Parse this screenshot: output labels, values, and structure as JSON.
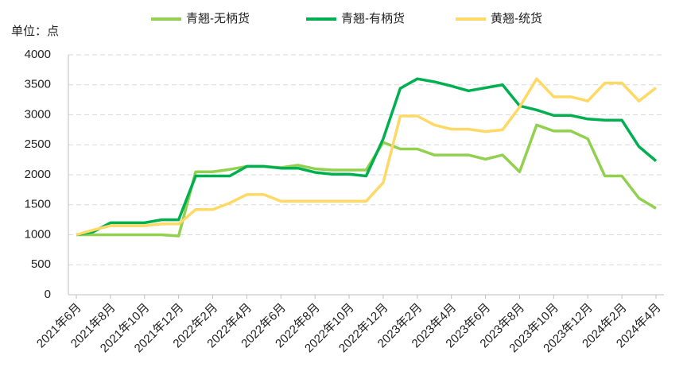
{
  "chart_data": {
    "type": "line",
    "y_label": "单位：点",
    "categories": [
      "2021年6月",
      null,
      "2021年8月",
      null,
      "2021年10月",
      null,
      "2021年12月",
      null,
      "2022年2月",
      null,
      "2022年4月",
      null,
      "2022年6月",
      null,
      "2022年8月",
      null,
      "2022年10月",
      null,
      "2022年12月",
      null,
      "2023年2月",
      null,
      "2023年4月",
      null,
      "2023年6月",
      null,
      "2023年8月",
      null,
      "2023年10月",
      null,
      "2023年12月",
      null,
      "2024年2月",
      null,
      "2024年4月"
    ],
    "series": [
      {
        "name": "青翘-无柄货",
        "color": "#92d050",
        "values": [
          1000,
          1000,
          1000,
          1000,
          1000,
          1000,
          980,
          2050,
          2050,
          2090,
          2140,
          2140,
          2120,
          2160,
          2100,
          2080,
          2080,
          2080,
          2540,
          2430,
          2430,
          2330,
          2330,
          2330,
          2260,
          2330,
          2050,
          2830,
          2730,
          2730,
          2600,
          1980,
          1980,
          1610,
          1440
        ]
      },
      {
        "name": "青翘-有柄货",
        "color": "#00b050",
        "values": [
          1000,
          1050,
          1200,
          1200,
          1200,
          1250,
          1250,
          1980,
          1980,
          1980,
          2140,
          2140,
          2110,
          2110,
          2040,
          2010,
          2010,
          1980,
          2600,
          3440,
          3600,
          3550,
          3480,
          3400,
          3450,
          3500,
          3150,
          3080,
          2990,
          2990,
          2930,
          2910,
          2910,
          2470,
          2230
        ]
      },
      {
        "name": "黄翘-统货",
        "color": "#ffd966",
        "values": [
          1000,
          1080,
          1150,
          1150,
          1150,
          1180,
          1180,
          1420,
          1420,
          1530,
          1670,
          1670,
          1560,
          1560,
          1560,
          1560,
          1560,
          1560,
          1870,
          2980,
          2980,
          2830,
          2760,
          2760,
          2720,
          2750,
          3130,
          3600,
          3300,
          3300,
          3230,
          3530,
          3530,
          3230,
          3450
        ]
      }
    ],
    "ylim": [
      0,
      4000
    ],
    "yticks": [
      0,
      500,
      1000,
      1500,
      2000,
      2500,
      3000,
      3500,
      4000
    ],
    "grid": true,
    "legend": "top"
  }
}
